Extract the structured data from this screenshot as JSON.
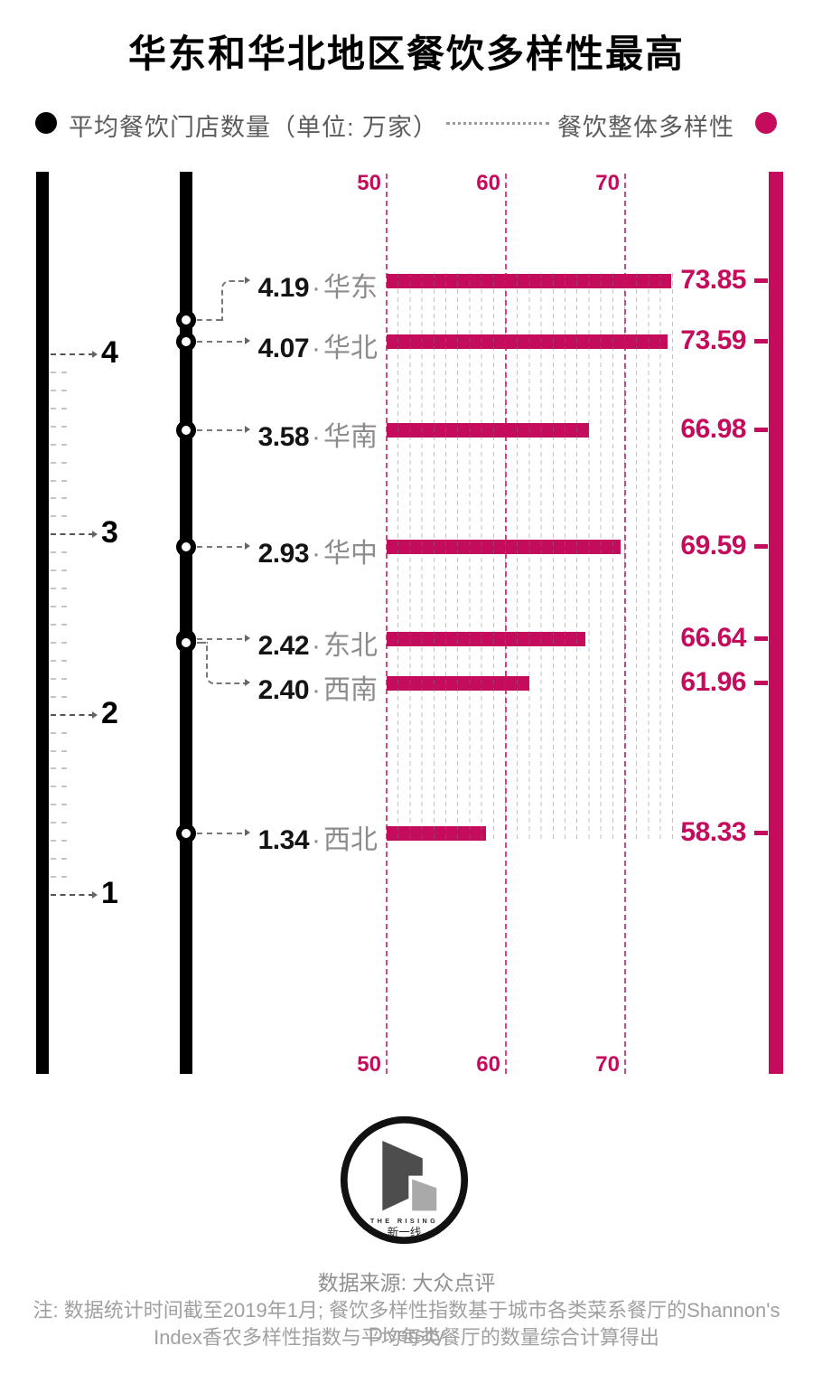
{
  "title": "华东和华北地区餐饮多样性最高",
  "legend": {
    "left_label": "平均餐饮门店数量（单位: 万家）",
    "right_label": "餐饮整体多样性"
  },
  "colors": {
    "accent": "#C50C5C",
    "axis_black": "#000000",
    "region_gray": "#8c8c8c"
  },
  "chart_data": {
    "type": "bar",
    "title": "华东和华北地区餐饮多样性最高",
    "series_names": [
      "平均餐饮门店数量(万家)",
      "餐饮整体多样性"
    ],
    "store_axis": {
      "ticks": [
        "4",
        "3",
        "2",
        "1"
      ],
      "minor_ticks_per_unit": 10
    },
    "diversity_axis": {
      "ticks": [
        "50",
        "60",
        "70"
      ],
      "range": [
        50,
        74
      ],
      "grid": "minor dashed every 1 unit"
    },
    "separator": "·",
    "rows": [
      {
        "region": "华东",
        "stores": "4.19",
        "diversity": "73.85"
      },
      {
        "region": "华北",
        "stores": "4.07",
        "diversity": "73.59"
      },
      {
        "region": "华南",
        "stores": "3.58",
        "diversity": "66.98"
      },
      {
        "region": "华中",
        "stores": "2.93",
        "diversity": "69.59"
      },
      {
        "region": "东北",
        "stores": "2.42",
        "diversity": "66.64"
      },
      {
        "region": "西南",
        "stores": "2.40",
        "diversity": "61.96"
      },
      {
        "region": "西北",
        "stores": "1.34",
        "diversity": "58.33"
      }
    ]
  },
  "logo": {
    "text_en": "THE RISING",
    "text_cn": "新一线"
  },
  "footer": {
    "source": "数据来源: 大众点评",
    "note_line1": "注: 数据统计时间截至2019年1月; 餐饮多样性指数基于城市各类菜系餐厅的Shannon's Diversity",
    "note_line2": "Index香农多样性指数与平均每类餐厅的数量综合计算得出"
  }
}
